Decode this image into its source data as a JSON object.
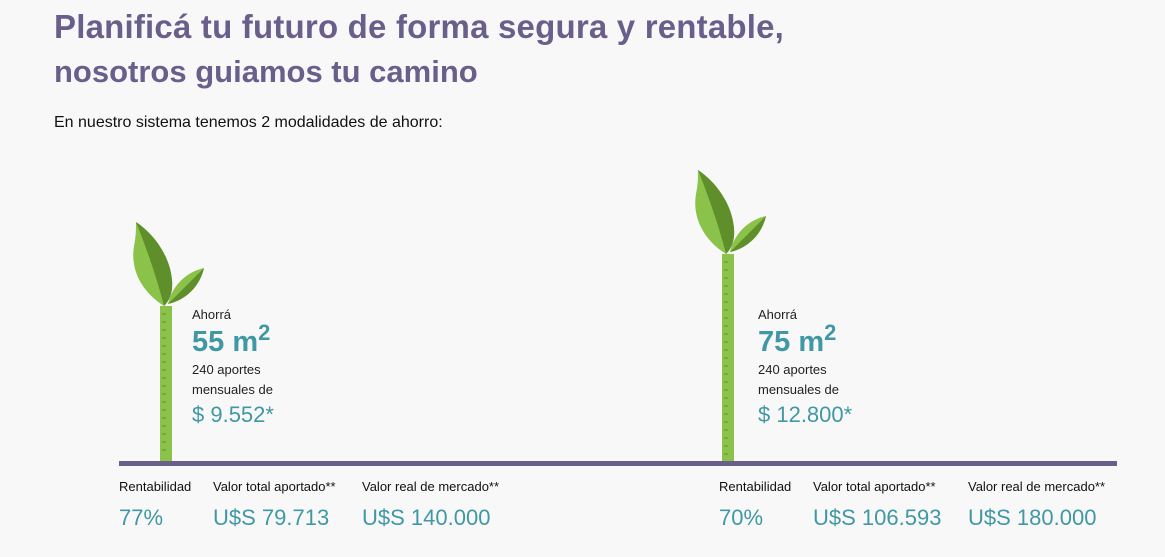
{
  "header": {
    "title": "Planificá tu futuro de forma segura y rentable,",
    "subtitle": "nosotros guiamos tu camino"
  },
  "intro": "En nuestro sistema tenemos 2 modalidades de ahorro:",
  "plans": [
    {
      "save_label": "Ahorrá",
      "area_value": "55 m",
      "area_exponent": "2",
      "installments_line1": "240 aportes",
      "installments_line2": "mensuales de",
      "price": "$ 9.552*",
      "stats": [
        {
          "label": "Rentabilidad",
          "value": "77%"
        },
        {
          "label": "Valor total aportado**",
          "value": "U$S 79.713"
        },
        {
          "label": "Valor real de mercado**",
          "value": "U$S 140.000"
        }
      ]
    },
    {
      "save_label": "Ahorrá",
      "area_value": "75 m",
      "area_exponent": "2",
      "installments_line1": "240 aportes",
      "installments_line2": "mensuales de",
      "price": "$ 12.800*",
      "stats": [
        {
          "label": "Rentabilidad",
          "value": "70%"
        },
        {
          "label": "Valor total aportado**",
          "value": "U$S 106.593"
        },
        {
          "label": "Valor real de mercado**",
          "value": "U$S 180.000"
        }
      ]
    }
  ],
  "colors": {
    "title": "#6a5f8a",
    "accent": "#3f98a3",
    "stem": "#8bc34a",
    "leaf_light": "#8bc34a",
    "leaf_dark": "#5f8f2a",
    "ground": "#6a5f8a"
  },
  "icons": [
    "sprout-icon",
    "sprout-icon"
  ]
}
